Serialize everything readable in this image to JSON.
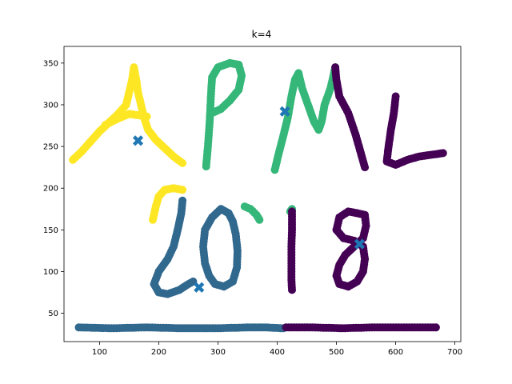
{
  "chart_data": {
    "type": "scatter",
    "title": "k=4",
    "xlabel": "",
    "ylabel": "",
    "xlim": [
      40,
      710
    ],
    "ylim": [
      16,
      370
    ],
    "xticks": [
      100,
      200,
      300,
      400,
      500,
      600,
      700
    ],
    "yticks": [
      50,
      100,
      150,
      200,
      250,
      300,
      350
    ],
    "grid": false,
    "legend": "none",
    "colors": {
      "cluster_0": "#440154",
      "cluster_1": "#31688e",
      "cluster_2": "#35b779",
      "cluster_3": "#fde725",
      "centroid": "#1f77b4"
    },
    "series": [
      {
        "cluster": 3,
        "strokes": [
          [
            [
              55,
              234
            ],
            [
              70,
              244
            ],
            [
              85,
              256
            ],
            [
              100,
              268
            ],
            [
              115,
              278
            ],
            [
              130,
              288
            ],
            [
              145,
              300
            ],
            [
              150,
              315
            ],
            [
              155,
              330
            ],
            [
              158,
              345
            ],
            [
              162,
              330
            ],
            [
              165,
              315
            ],
            [
              170,
              300
            ],
            [
              175,
              285
            ],
            [
              182,
              270
            ],
            [
              195,
              258
            ],
            [
              210,
              248
            ],
            [
              225,
              238
            ],
            [
              240,
              230
            ]
          ],
          [
            [
              110,
              276
            ],
            [
              130,
              283
            ],
            [
              150,
              289
            ],
            [
              170,
              287
            ],
            [
              180,
              286
            ]
          ],
          [
            [
              190,
              162
            ],
            [
              195,
              178
            ],
            [
              200,
              190
            ],
            [
              210,
              198
            ],
            [
              225,
              200
            ],
            [
              240,
              198
            ]
          ]
        ]
      },
      {
        "cluster": 1,
        "strokes": [
          [
            [
              240,
              185
            ],
            [
              238,
              170
            ],
            [
              232,
              150
            ],
            [
              225,
              130
            ],
            [
              215,
              115
            ],
            [
              200,
              100
            ],
            [
              192,
              85
            ],
            [
              200,
              75
            ],
            [
              215,
              73
            ],
            [
              235,
              78
            ],
            [
              250,
              85
            ],
            [
              258,
              88
            ]
          ],
          [
            [
              305,
              175
            ],
            [
              290,
              165
            ],
            [
              278,
              150
            ],
            [
              275,
              130
            ],
            [
              278,
              110
            ],
            [
              285,
              95
            ],
            [
              295,
              85
            ],
            [
              310,
              82
            ],
            [
              325,
              88
            ],
            [
              332,
              105
            ],
            [
              333,
              125
            ],
            [
              330,
              145
            ],
            [
              325,
              160
            ],
            [
              318,
              170
            ],
            [
              305,
              175
            ]
          ],
          [
            [
              65,
              33
            ],
            [
              120,
              32
            ],
            [
              180,
              33
            ],
            [
              240,
              32
            ],
            [
              300,
              32
            ],
            [
              350,
              33
            ],
            [
              380,
              33
            ],
            [
              410,
              32
            ]
          ]
        ]
      },
      {
        "cluster": 2,
        "strokes": [
          [
            [
              280,
              226
            ],
            [
              283,
              250
            ],
            [
              286,
              280
            ],
            [
              288,
              310
            ],
            [
              290,
              333
            ],
            [
              300,
              345
            ],
            [
              320,
              350
            ],
            [
              335,
              348
            ],
            [
              340,
              335
            ],
            [
              335,
              318
            ],
            [
              320,
              305
            ],
            [
              305,
              295
            ],
            [
              290,
              290
            ]
          ],
          [
            [
              396,
              222
            ],
            [
              402,
              240
            ],
            [
              410,
              262
            ],
            [
              418,
              285
            ],
            [
              424,
              310
            ],
            [
              430,
              330
            ],
            [
              436,
              338
            ],
            [
              442,
              320
            ],
            [
              452,
              300
            ],
            [
              462,
              280
            ],
            [
              470,
              270
            ],
            [
              475,
              280
            ],
            [
              480,
              300
            ],
            [
              490,
              320
            ],
            [
              495,
              335
            ],
            [
              498,
              345
            ]
          ],
          [
            [
              345,
              178
            ],
            [
              355,
              175
            ],
            [
              365,
              168
            ],
            [
              370,
              162
            ]
          ],
          [
            [
              422,
              172
            ],
            [
              425,
              175
            ]
          ]
        ]
      },
      {
        "cluster": 0,
        "strokes": [
          [
            [
              498,
              345
            ],
            [
              500,
              330
            ],
            [
              505,
              310
            ],
            [
              520,
              290
            ],
            [
              532,
              265
            ],
            [
              540,
              245
            ],
            [
              548,
              225
            ]
          ],
          [
            [
              600,
              310
            ],
            [
              597,
              290
            ],
            [
              592,
              270
            ],
            [
              588,
              250
            ],
            [
              585,
              232
            ],
            [
              600,
              228
            ],
            [
              620,
              234
            ],
            [
              640,
              238
            ],
            [
              660,
              240
            ],
            [
              680,
              242
            ]
          ],
          [
            [
              425,
              172
            ],
            [
              425,
              150
            ],
            [
              424,
              130
            ],
            [
              424,
              110
            ],
            [
              424,
              90
            ],
            [
              425,
              78
            ]
          ],
          [
            [
              535,
              170
            ],
            [
              520,
              172
            ],
            [
              505,
              165
            ],
            [
              500,
              150
            ],
            [
              512,
              140
            ],
            [
              530,
              137
            ],
            [
              545,
              130
            ],
            [
              548,
              115
            ],
            [
              545,
              100
            ],
            [
              535,
              88
            ],
            [
              520,
              82
            ],
            [
              505,
              85
            ],
            [
              500,
              95
            ],
            [
              505,
              108
            ],
            [
              515,
              120
            ],
            [
              530,
              130
            ],
            [
              545,
              140
            ],
            [
              550,
              155
            ],
            [
              548,
              168
            ],
            [
              535,
              170
            ]
          ],
          [
            [
              415,
              33
            ],
            [
              460,
              33
            ],
            [
              510,
              32
            ],
            [
              560,
              33
            ],
            [
              610,
              33
            ],
            [
              668,
              33
            ]
          ]
        ]
      }
    ],
    "centroids": [
      {
        "x": 165,
        "y": 257
      },
      {
        "x": 268,
        "y": 81
      },
      {
        "x": 413,
        "y": 292
      },
      {
        "x": 539,
        "y": 133
      }
    ]
  }
}
